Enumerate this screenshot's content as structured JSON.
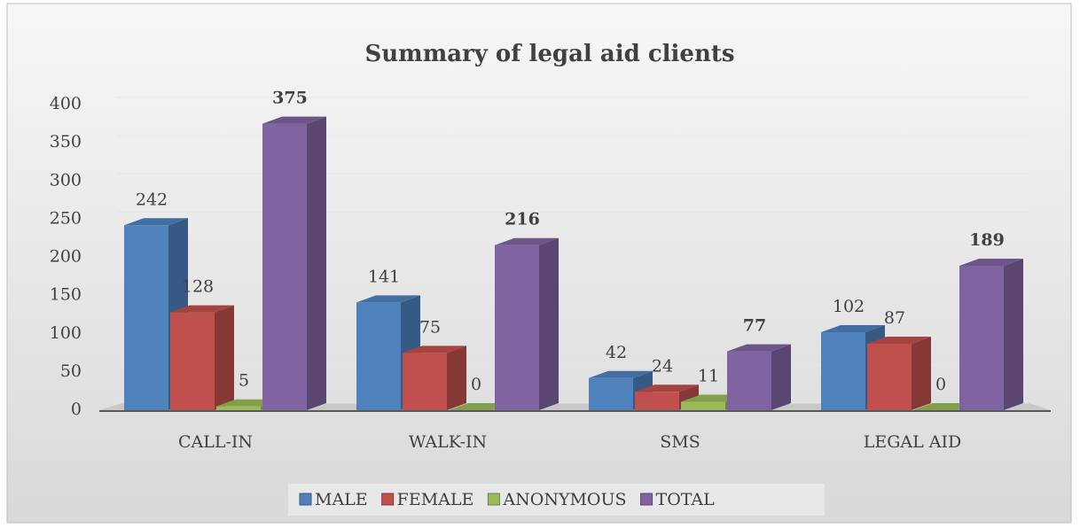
{
  "chart_data": {
    "type": "bar3d",
    "title": "Summary of legal aid clients",
    "categories": [
      "CALL-IN",
      "WALK-IN",
      "SMS",
      "LEGAL AID"
    ],
    "series": [
      {
        "name": "MALE",
        "color": "#4f81bd",
        "values": [
          242,
          141,
          42,
          102
        ]
      },
      {
        "name": "FEMALE",
        "color": "#c0504d",
        "values": [
          128,
          75,
          24,
          87
        ]
      },
      {
        "name": "ANONYMOUS",
        "color": "#9bbb59",
        "values": [
          5,
          0,
          11,
          0
        ]
      },
      {
        "name": "TOTAL",
        "color": "#8064a2",
        "values": [
          375,
          216,
          77,
          189
        ],
        "bold": true
      }
    ],
    "ylim": [
      0,
      400
    ],
    "yticks": [
      0,
      50,
      100,
      150,
      200,
      250,
      300,
      350,
      400
    ],
    "grid": true,
    "legend": "bottom"
  }
}
